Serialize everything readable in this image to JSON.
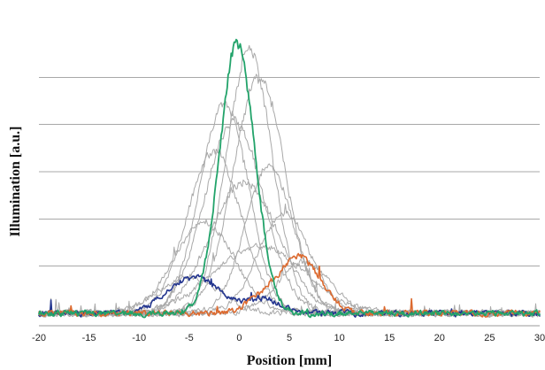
{
  "chart_data": {
    "type": "line",
    "title": "",
    "xlabel": "Position [mm]",
    "ylabel": "Illumination [a.u.]",
    "xlim": [
      -20,
      30
    ],
    "ylim": [
      0,
      100
    ],
    "x_ticks": [
      -20,
      -15,
      -10,
      -5,
      0,
      5,
      10,
      15,
      20,
      25,
      30
    ],
    "y_gridlines": [
      16.7,
      33.3,
      50,
      66.7,
      83.3
    ],
    "y_tick_labels": false,
    "grid": "horizontal",
    "legend": "none",
    "colors": {
      "gray": "#a9a9a9",
      "green": "#22a36a",
      "blue": "#23358f",
      "orange": "#dc6a2f",
      "grid": "#a8a8a8"
    },
    "series": [
      {
        "color": "gray",
        "width": 1,
        "noise_seed": 11,
        "peaks": [
          {
            "center": 1.0,
            "height": 93,
            "width": 2.3
          }
        ]
      },
      {
        "color": "gray",
        "width": 1,
        "noise_seed": 12,
        "peaks": [
          {
            "center": 2.0,
            "height": 83,
            "width": 2.6
          }
        ]
      },
      {
        "color": "gray",
        "width": 1,
        "noise_seed": 13,
        "peaks": [
          {
            "center": -1.5,
            "height": 75,
            "width": 2.4
          }
        ]
      },
      {
        "color": "gray",
        "width": 1,
        "noise_seed": 14,
        "peaks": [
          {
            "center": -0.5,
            "height": 68,
            "width": 2.9
          }
        ]
      },
      {
        "color": "gray",
        "width": 1,
        "noise_seed": 15,
        "peaks": [
          {
            "center": -2.5,
            "height": 57,
            "width": 2.7
          }
        ]
      },
      {
        "color": "gray",
        "width": 1,
        "noise_seed": 16,
        "peaks": [
          {
            "center": 3.0,
            "height": 52,
            "width": 2.4
          }
        ]
      },
      {
        "color": "gray",
        "width": 1,
        "noise_seed": 17,
        "peaks": [
          {
            "center": 0.5,
            "height": 46,
            "width": 3.4
          }
        ]
      },
      {
        "color": "gray",
        "width": 1,
        "noise_seed": 18,
        "peaks": [
          {
            "center": 4.5,
            "height": 35,
            "width": 2.6
          }
        ]
      },
      {
        "color": "gray",
        "width": 1,
        "noise_seed": 19,
        "peaks": [
          {
            "center": -3.5,
            "height": 32,
            "width": 3.0
          }
        ]
      },
      {
        "color": "gray",
        "width": 1,
        "noise_seed": 20,
        "peaks": [
          {
            "center": 6.5,
            "height": 18,
            "width": 2.6
          }
        ]
      },
      {
        "color": "gray",
        "width": 1,
        "noise_seed": 21,
        "peaks": [
          {
            "center": -5.0,
            "height": 13,
            "width": 3.0
          }
        ]
      },
      {
        "color": "gray",
        "width": 1,
        "noise_seed": 22,
        "peaks": [
          {
            "center": 2.0,
            "height": 24,
            "width": 4.5
          }
        ]
      },
      {
        "color": "blue",
        "width": 1.6,
        "noise_seed": 31,
        "peaks": [
          {
            "center": -4.5,
            "height": 13,
            "width": 2.6
          },
          {
            "center": 2.5,
            "height": 5,
            "width": 1.6
          }
        ]
      },
      {
        "color": "orange",
        "width": 1.6,
        "noise_seed": 41,
        "peaks": [
          {
            "center": 6.0,
            "height": 20,
            "width": 2.1
          },
          {
            "center": 2.0,
            "height": 4,
            "width": 1.5
          }
        ]
      },
      {
        "color": "green",
        "width": 1.8,
        "noise_seed": 51,
        "peaks": [
          {
            "center": -0.2,
            "height": 95,
            "width": 1.75
          }
        ]
      }
    ]
  }
}
